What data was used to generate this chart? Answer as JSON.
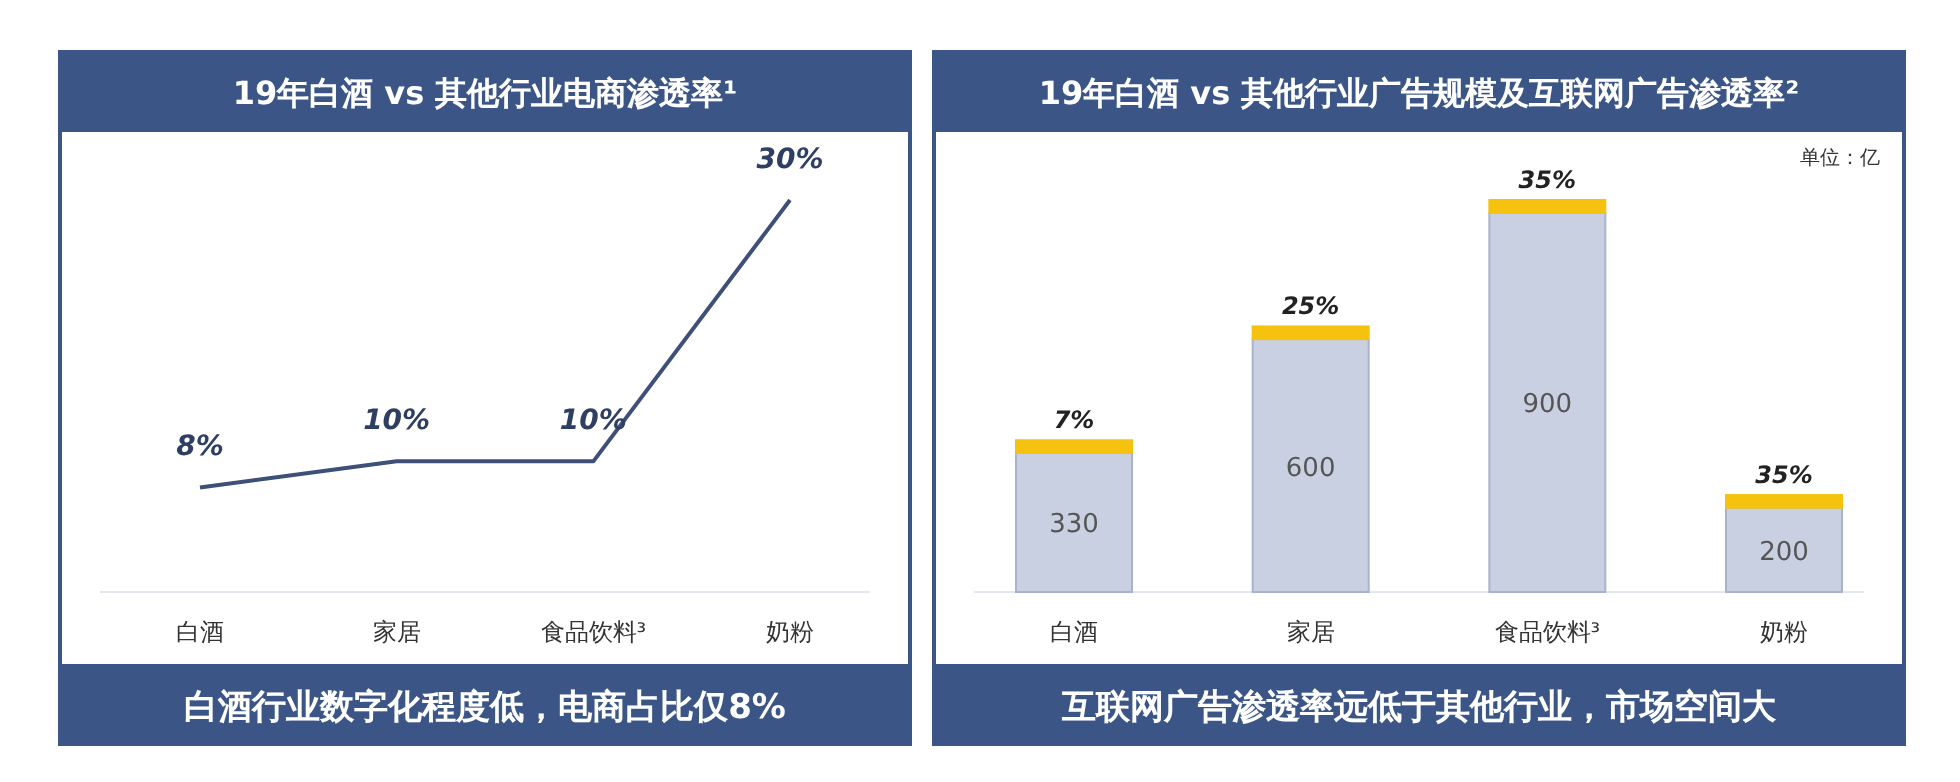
{
  "chart_data": [
    {
      "type": "line",
      "title": "19年白酒 vs 其他行业电商渗透率¹",
      "categories": [
        "白酒",
        "家居",
        "食品饮料³",
        "奶粉"
      ],
      "series": [
        {
          "color": "#3e5079",
          "values": [
            8,
            10,
            10,
            30
          ],
          "value_labels": [
            "8%",
            "10%",
            "10%",
            "30%"
          ]
        }
      ],
      "annotations": [
        "白酒行业数字化程度低，电商占比仅8%"
      ],
      "marker": "none",
      "line_style": "solid",
      "grid": false
    },
    {
      "type": "bar",
      "stacked": true,
      "title": "19年白酒 vs 其他行业广告规模及互联网广告渗透率²",
      "categories": [
        "白酒",
        "家居",
        "食品饮料³",
        "奶粉"
      ],
      "series": [
        {
          "color": "#c8d0e2",
          "values": [
            330,
            600,
            900,
            200
          ],
          "value_labels": [
            "330",
            "600",
            "900",
            "200"
          ]
        },
        {
          "color": "#f5c20f",
          "values": [
            30,
            30,
            30,
            30
          ]
        }
      ],
      "annotations": [
        "单位：亿",
        {
          "text": "7%",
          "x": "白酒",
          "y": 360
        },
        {
          "text": "25%",
          "x": "家居",
          "y": 630
        },
        {
          "text": "35%",
          "x": "食品饮料³",
          "y": 930
        },
        {
          "text": "35%",
          "x": "奶粉",
          "y": 230
        },
        "互联网广告渗透率远低于其他行业，市场空间大"
      ],
      "grid": false
    }
  ]
}
